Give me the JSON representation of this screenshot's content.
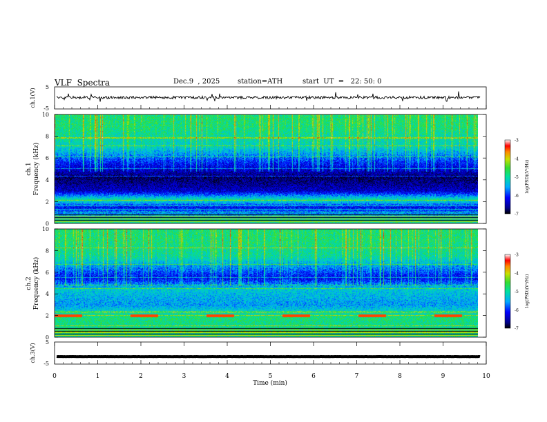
{
  "header": {
    "title": "VLF  Spectra",
    "date": "Dec.9  , 2025",
    "station": "station=ATH",
    "start_ut": "start  UT  =   22: 50: 0"
  },
  "colors": {
    "axis": "#000000",
    "spectrogram_low": "#00008b",
    "spectrogram_high": "#ff0000",
    "waveform": "#000000"
  },
  "chart_data": [
    {
      "type": "line",
      "panel": "ch1-waveform",
      "ylabel": "ch.1(V)",
      "ylim": [
        -5,
        5
      ],
      "y_ticks": [
        "5",
        "-5"
      ],
      "xlim": [
        0,
        10
      ],
      "series": [
        {
          "name": "ch.1",
          "approx_level": 0.2,
          "approx_amplitude": 1.2
        }
      ]
    },
    {
      "type": "heatmap",
      "panel": "ch1-spectrogram",
      "ylabel": "ch.1\nFrequency (kHz)",
      "ylabel_lines": [
        "ch.1",
        "Frequency  (kHz)"
      ],
      "ylim": [
        0,
        10
      ],
      "y_ticks": [
        "0",
        "2",
        "4",
        "6",
        "8",
        "10"
      ],
      "xlim": [
        0,
        9.8
      ],
      "colorbar": {
        "label": "log(PSD)(V²/Hz)",
        "range": [
          -7,
          -3
        ],
        "ticks": [
          "-3",
          "-4",
          "-5",
          "-6",
          "-7"
        ]
      },
      "psd_profile_khz": [
        {
          "f": 0.3,
          "level": -5.0
        },
        {
          "f": 1.5,
          "level": -6.3
        },
        {
          "f": 2.2,
          "level": -5.0
        },
        {
          "f": 3.0,
          "level": -6.5
        },
        {
          "f": 4.2,
          "level": -6.9
        },
        {
          "f": 5.5,
          "level": -6.2
        },
        {
          "f": 7.0,
          "level": -5.2
        },
        {
          "f": 9.0,
          "level": -4.8
        }
      ]
    },
    {
      "type": "heatmap",
      "panel": "ch2-spectrogram",
      "ylabel_lines": [
        "ch.2",
        "Frequency  (kHz)"
      ],
      "ylim": [
        0,
        10
      ],
      "y_ticks": [
        "0",
        "2",
        "4",
        "6",
        "8",
        "10"
      ],
      "xlim": [
        0,
        9.8
      ],
      "colorbar": {
        "label": "log(PSD)(V²/Hz)",
        "range": [
          -7,
          -3
        ],
        "ticks": [
          "-3",
          "-4",
          "-5",
          "-6",
          "-7"
        ]
      },
      "psd_profile_khz": [
        {
          "f": 0.5,
          "level": -5.0
        },
        {
          "f": 1.8,
          "level": -4.8
        },
        {
          "f": 3.0,
          "level": -5.6
        },
        {
          "f": 4.5,
          "level": -5.3
        },
        {
          "f": 5.5,
          "level": -6.3
        },
        {
          "f": 7.5,
          "level": -5.0
        },
        {
          "f": 9.0,
          "level": -4.8
        }
      ]
    },
    {
      "type": "line",
      "panel": "ch3-waveform",
      "ylabel": "ch.3(V)",
      "ylim": [
        -5,
        5
      ],
      "y_ticks": [
        "5",
        "-5"
      ],
      "xlim": [
        0,
        10
      ],
      "xlabel": "Time  (min)",
      "x_ticks": [
        "0",
        "1",
        "2",
        "3",
        "4",
        "5",
        "6",
        "7",
        "8",
        "9",
        "10"
      ],
      "series": [
        {
          "name": "ch.3",
          "approx_level": -1.6,
          "approx_amplitude": 0.1
        }
      ]
    }
  ]
}
